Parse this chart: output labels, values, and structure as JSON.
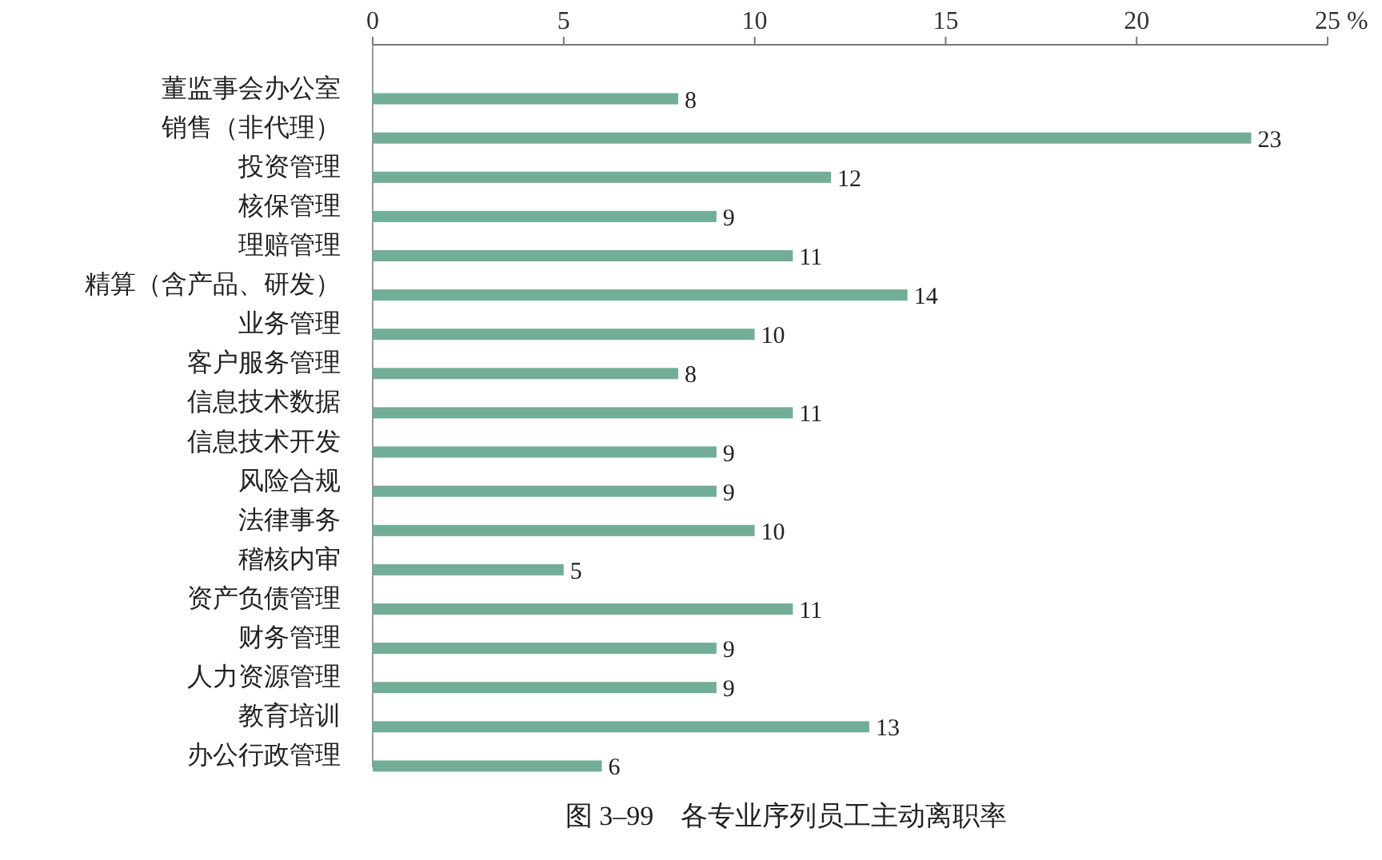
{
  "chart_data": {
    "type": "bar",
    "orientation": "horizontal",
    "title": "图 3–99　各专业序列员工主动离职率",
    "xlabel": "%",
    "categories": [
      "董监事会办公室",
      "销售（非代理）",
      "投资管理",
      "核保管理",
      "理赔管理",
      "精算（含产品、研发）",
      "业务管理",
      "客户服务管理",
      "信息技术数据",
      "信息技术开发",
      "风险合规",
      "法律事务",
      "稽核内审",
      "资产负债管理",
      "财务管理",
      "人力资源管理",
      "教育培训",
      "办公行政管理"
    ],
    "values": [
      8,
      23,
      12,
      9,
      11,
      14,
      10,
      8,
      11,
      9,
      9,
      10,
      5,
      11,
      9,
      9,
      13,
      6
    ],
    "color": "#72ad97",
    "xlim": [
      0,
      25
    ],
    "xticks": [
      0,
      5,
      10,
      15,
      20,
      25
    ],
    "data_labels": true,
    "grid": false
  }
}
